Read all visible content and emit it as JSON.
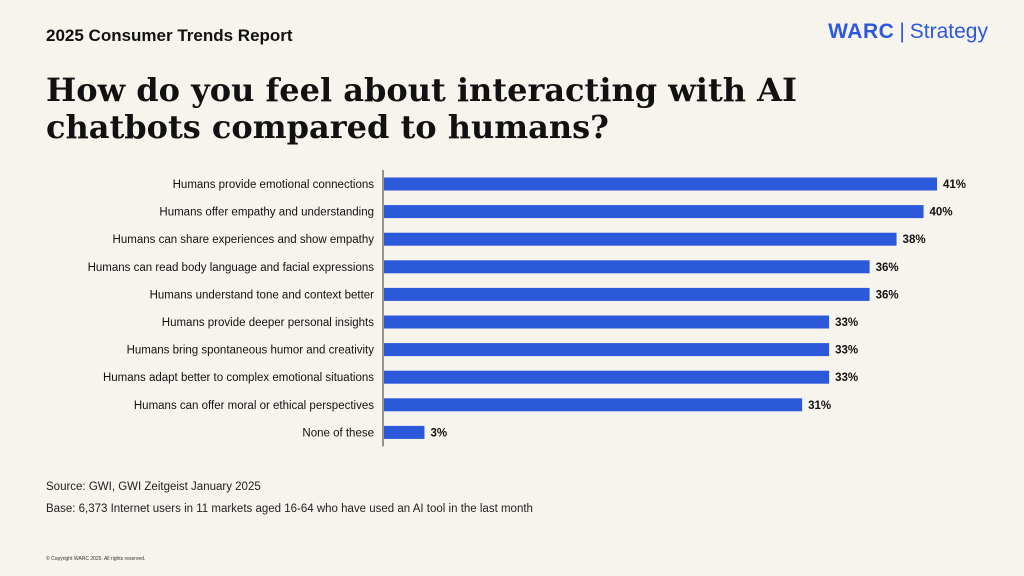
{
  "header": {
    "report_title": "2025 Consumer Trends Report",
    "logo_brand": "WARC",
    "logo_separator": "|",
    "logo_sub": "Strategy"
  },
  "headline": "How do you feel about interacting with AI chatbots compared to humans?",
  "chart_data": {
    "type": "bar",
    "orientation": "horizontal",
    "categories": [
      "Humans provide emotional connections",
      "Humans offer empathy and understanding",
      "Humans can share experiences and show empathy",
      "Humans can read body language and facial expressions",
      "Humans understand tone and context better",
      "Humans provide deeper personal insights",
      "Humans bring spontaneous humor and creativity",
      "Humans adapt better to complex emotional situations",
      "Humans can offer moral or ethical perspectives",
      "None of these"
    ],
    "values": [
      41,
      40,
      38,
      36,
      36,
      33,
      33,
      33,
      31,
      3
    ],
    "value_labels": [
      "41%",
      "40%",
      "38%",
      "36%",
      "36%",
      "33%",
      "33%",
      "33%",
      "31%",
      "3%"
    ],
    "xlim": [
      0,
      43
    ],
    "grid": false,
    "bar_color": "#2b59d9"
  },
  "footer": {
    "source": "Source: GWI, GWI Zeitgeist January 2025",
    "base": "Base: 6,373 Internet users in 11 markets aged 16-64 who have used an AI tool in the last month",
    "copyright": "© Copyright WARC 2025. All rights reserved."
  }
}
